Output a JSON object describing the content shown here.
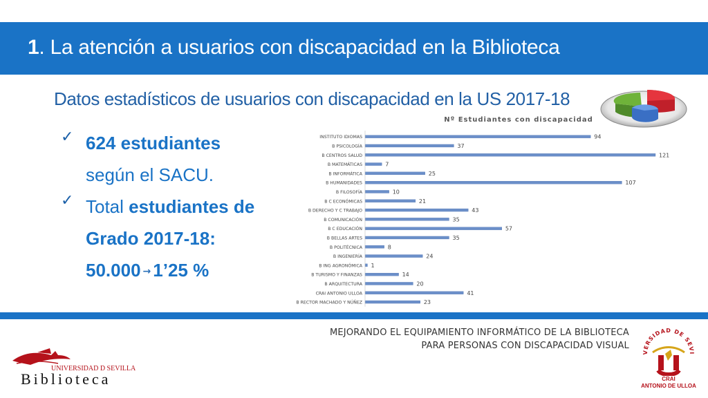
{
  "header": {
    "number": "1",
    "title": ". La atención a usuarios con discapacidad en la Biblioteca"
  },
  "subtitle": "Datos estadísticos de usuarios con discapacidad en la US 2017-18",
  "bullets": [
    {
      "check": "✓",
      "bold1": "624 estudiantes",
      "line2": "según el SACU."
    },
    {
      "check": "✓",
      "text": "Total ",
      "bold1": "estudiantes de",
      "bold2": "Grado 2017-18:",
      "bold3a": "50.000",
      "arrow": "→",
      "bold3b": "1’25 %"
    }
  ],
  "chart_data": {
    "type": "bar",
    "orientation": "horizontal",
    "title": "Nº Estudiantes con discapacidad",
    "categories": [
      "INSTITUTO IDIOMAS",
      "B PSICOLOGÍA",
      "B CENTROS SALUD",
      "B MATEMÁTICAS",
      "B INFORMÁTICA",
      "B HUMANIDADES",
      "B FILOSOFÍA",
      "B C ECONÓMICAS",
      "B DERECHO Y C TRABAJO",
      "B COMUNICACIÓN",
      "B C EDUCACIÓN",
      "B BELLAS ARTES",
      "B POLITÉCNICA",
      "B INGENIERÍA",
      "B ING AGRONÓMICA",
      "B TURISMO Y FINANZAS",
      "B ARQUITECTURA",
      "CRAI ANTONIO ULLOA",
      "B RECTOR MACHADO Y NÚÑEZ"
    ],
    "values": [
      94,
      37,
      121,
      7,
      25,
      107,
      10,
      21,
      43,
      35,
      57,
      35,
      8,
      24,
      1,
      14,
      20,
      41,
      23
    ],
    "xlim": [
      0,
      121
    ],
    "grid": false,
    "legend": "none",
    "bar_color": "#6b8fc9",
    "label_color": "#444444"
  },
  "footer": {
    "line1": "MEJORANDO EL EQUIPAMIENTO INFORMÁTICO DE LA BIBLIOTECA",
    "line2": "PARA PERSONAS CON DISCAPACIDAD VISUAL"
  },
  "logo_left": {
    "university": "UNIVERSIDAD D SEVILLA",
    "name": "Biblioteca"
  },
  "logo_right": {
    "line1": "CRAI",
    "line2": "ANTONIO DE ULLOA"
  },
  "colors": {
    "primary": "#1a73c6",
    "heading": "#2260a5",
    "brand_red": "#b5121b"
  }
}
